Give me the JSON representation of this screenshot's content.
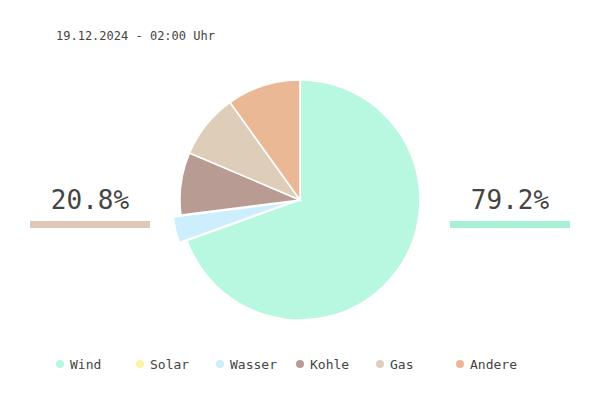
{
  "chart_data": {
    "type": "pie",
    "title": "19.12.2024 - 02:00 Uhr",
    "categories": [
      "Wind",
      "Solar",
      "Wasser",
      "Kohle",
      "Gas",
      "Andere"
    ],
    "values": [
      69.5,
      0,
      3.5,
      8.4,
      8.7,
      9.9
    ],
    "colors": [
      "#b8f7e0",
      "#fbf3a6",
      "#cdeefc",
      "#b89c94",
      "#decdb9",
      "#ebb896"
    ],
    "legend": "bottom",
    "data_labels": false,
    "summary": {
      "values": [
        20.8,
        79.2
      ],
      "value_labels": [
        "20.8%",
        "79.2%"
      ],
      "colors": [
        "#e0c8b8",
        "#a8f0d4"
      ]
    }
  }
}
